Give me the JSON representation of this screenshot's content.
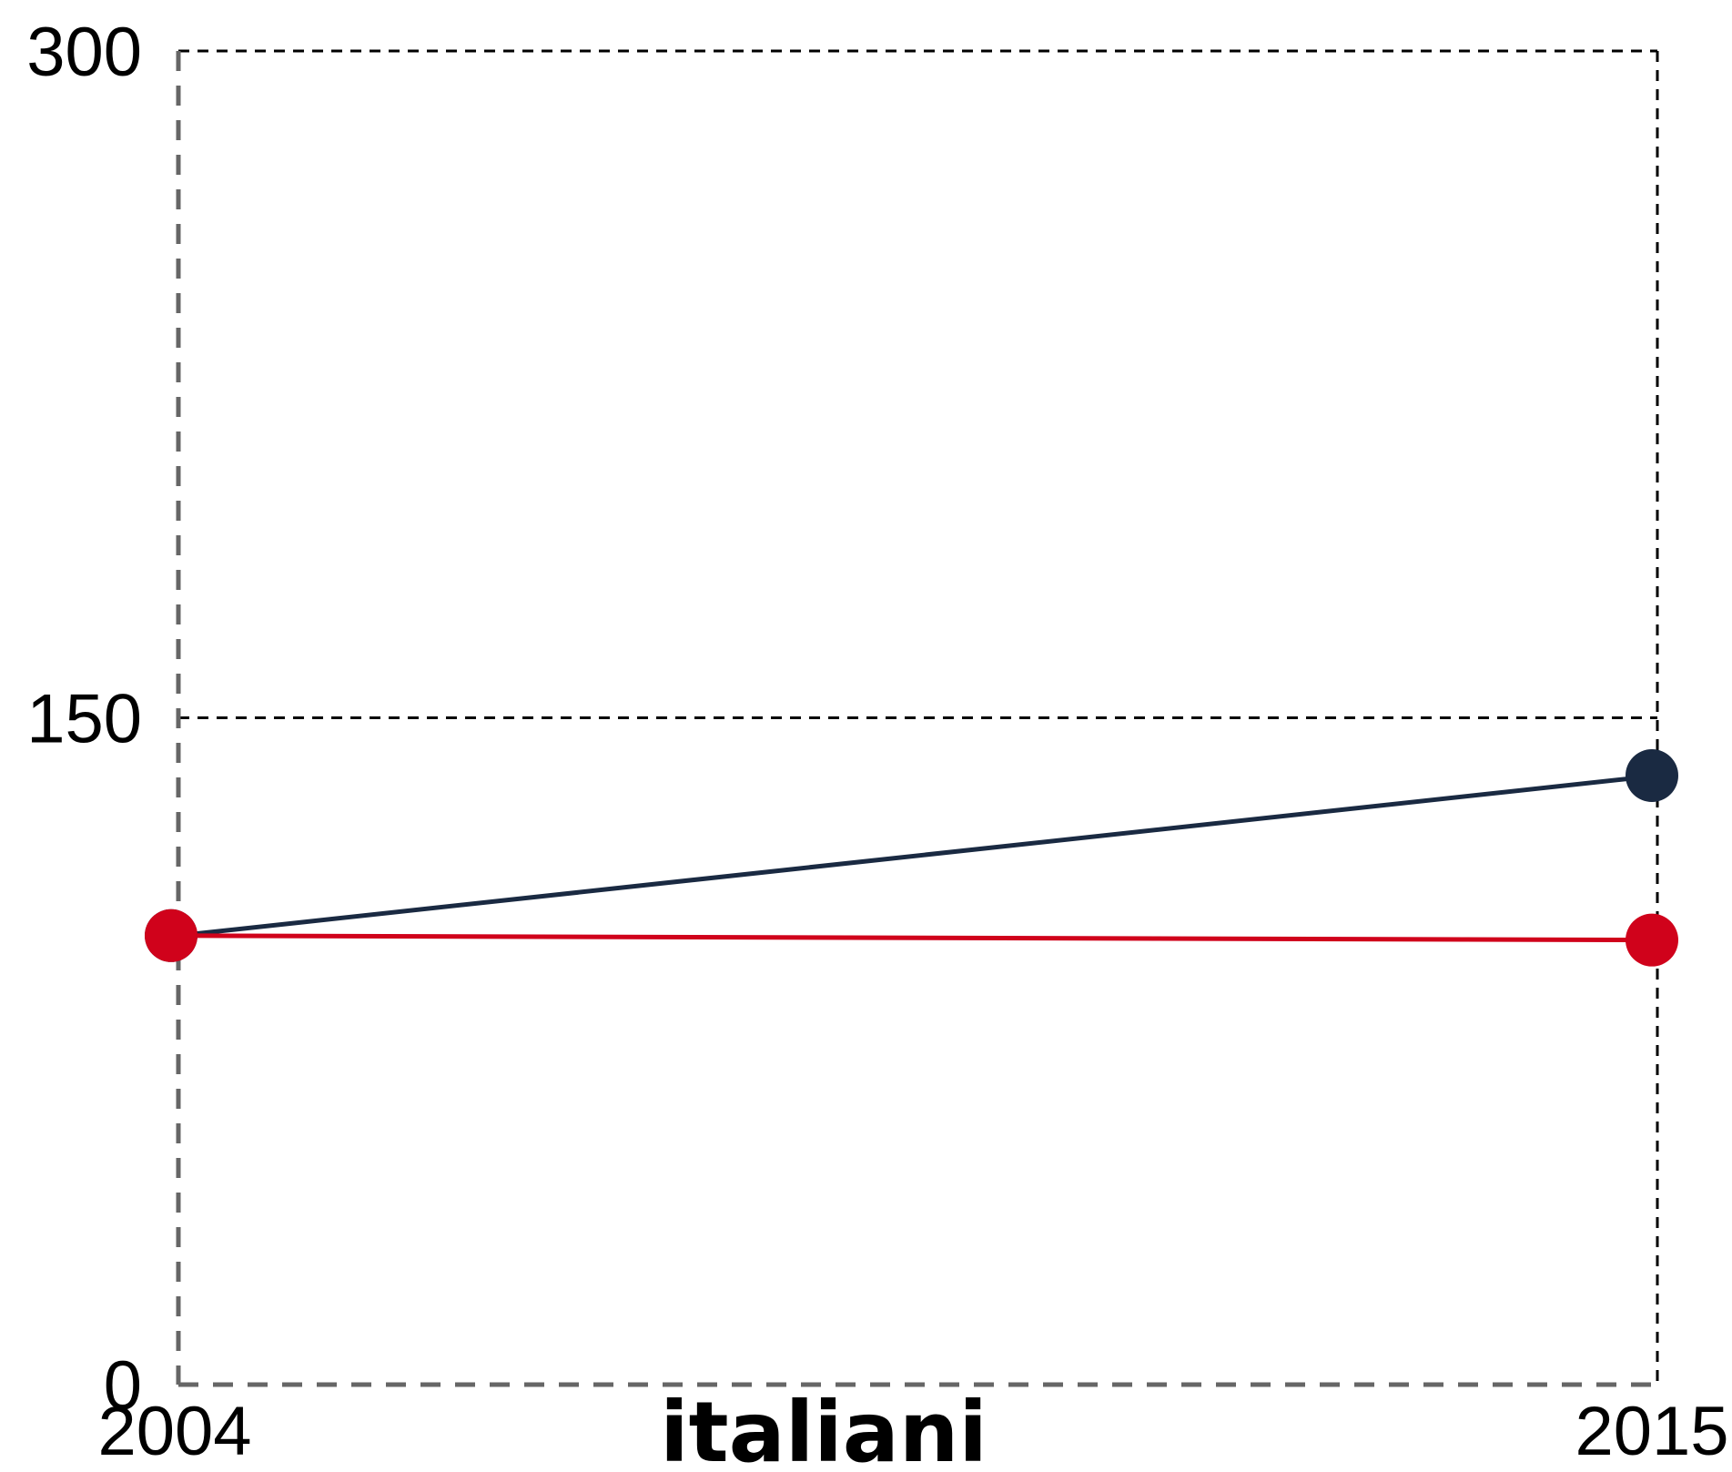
{
  "chart_data": {
    "type": "line",
    "title": "",
    "xlabel": "",
    "ylabel": "",
    "category_label": "italiani",
    "x": [
      "2004",
      "2015"
    ],
    "xlim": [
      2004,
      2015
    ],
    "ylim": [
      0,
      300
    ],
    "y_ticks": [
      0,
      150,
      300
    ],
    "x_tick_labels": [
      "2004",
      "2015"
    ],
    "y_tick_labels": [
      "0",
      "150",
      "300"
    ],
    "grid": true,
    "legend": "none",
    "series": [
      {
        "values": [
          101,
          137
        ],
        "color": "#1a2a42"
      },
      {
        "values": [
          101,
          100
        ],
        "color": "#d0021b"
      }
    ],
    "axis_color": "#666666",
    "grid_color": "#000000"
  }
}
